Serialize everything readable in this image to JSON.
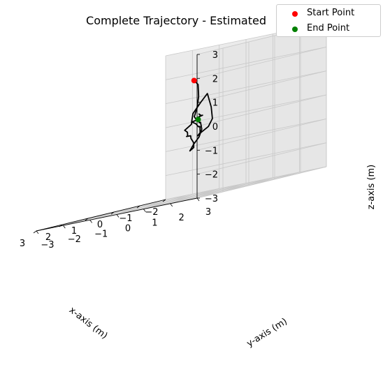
{
  "chart_data": {
    "type": "line",
    "projection": "3d",
    "title": "Complete Trajectory - Estimated",
    "xlabel": "x-axis (m)",
    "ylabel": "y-axis (m)",
    "zlabel": "z-axis (m)",
    "xlim": [
      -2,
      3
    ],
    "ylim": [
      -3,
      3
    ],
    "zlim": [
      -3,
      3
    ],
    "xticks": [
      "−2",
      "−1",
      "0",
      "1",
      "2",
      "3"
    ],
    "yticks": [
      "−3",
      "−2",
      "−1",
      "0",
      "1",
      "2",
      "3"
    ],
    "zticks": [
      "−3",
      "−2",
      "−1",
      "0",
      "1",
      "2",
      "3"
    ],
    "grid": true,
    "legend_position": "top-right",
    "series": [
      {
        "kind": "line",
        "color": "#000000",
        "points": [
          [
            -0.2,
            -0.2,
            1.8
          ],
          [
            -0.25,
            -0.1,
            1.6
          ],
          [
            -0.22,
            -0.05,
            1.1
          ],
          [
            -0.1,
            0.0,
            0.6
          ],
          [
            0.0,
            0.0,
            0.3
          ],
          [
            0.1,
            0.15,
            0.2
          ],
          [
            0.25,
            0.35,
            0.25
          ],
          [
            0.25,
            0.55,
            0.3
          ],
          [
            0.45,
            0.7,
            0.3
          ],
          [
            0.75,
            0.9,
            0.4
          ],
          [
            0.9,
            1.1,
            0.35
          ],
          [
            1.1,
            1.2,
            0.2
          ],
          [
            1.4,
            1.25,
            0.15
          ],
          [
            1.45,
            1.35,
            0.5
          ],
          [
            1.25,
            1.45,
            0.9
          ],
          [
            1.1,
            1.55,
            1.2
          ],
          [
            0.9,
            1.5,
            0.6
          ],
          [
            0.75,
            1.4,
            0.1
          ],
          [
            0.75,
            1.25,
            -0.2
          ],
          [
            0.8,
            1.0,
            -0.4
          ],
          [
            0.7,
            0.8,
            -0.5
          ],
          [
            0.5,
            0.7,
            -0.4
          ],
          [
            0.35,
            0.55,
            -0.15
          ],
          [
            0.2,
            0.35,
            -0.15
          ],
          [
            0.15,
            0.2,
            0.0
          ],
          [
            0.0,
            -0.1,
            0.1
          ],
          [
            -0.15,
            -0.25,
            0.0
          ],
          [
            -0.3,
            -0.45,
            -0.05
          ],
          [
            -0.25,
            -0.6,
            -0.2
          ],
          [
            -0.2,
            -0.45,
            -0.3
          ],
          [
            -0.05,
            -0.3,
            -0.35
          ],
          [
            0.05,
            -0.2,
            -0.45
          ],
          [
            0.3,
            0.0,
            -0.45
          ],
          [
            0.4,
            0.25,
            -0.45
          ],
          [
            0.6,
            0.45,
            -0.5
          ],
          [
            0.7,
            0.55,
            -0.55
          ],
          [
            0.75,
            0.7,
            -0.75
          ],
          [
            0.85,
            0.8,
            -0.95
          ],
          [
            1.0,
            0.8,
            -1.05
          ],
          [
            0.95,
            0.9,
            -0.8
          ],
          [
            0.85,
            1.0,
            -0.55
          ],
          [
            0.85,
            1.1,
            -0.25
          ],
          [
            0.95,
            1.15,
            0.05
          ],
          [
            1.1,
            1.25,
            0.05
          ],
          [
            1.25,
            1.35,
            0.2
          ]
        ],
        "start_point": [
          -0.2,
          -0.2,
          1.8
        ],
        "end_point": [
          1.25,
          1.35,
          0.2
        ]
      }
    ],
    "legend": [
      {
        "label": "Start Point",
        "color": "#ff0000"
      },
      {
        "label": "End Point",
        "color": "#008000"
      }
    ]
  }
}
